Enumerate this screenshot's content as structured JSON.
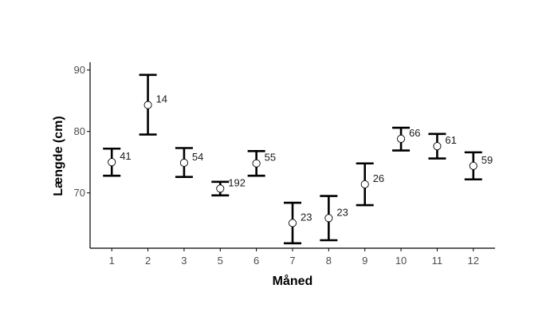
{
  "chart_data": {
    "type": "scatter",
    "title": "",
    "xlabel": "Måned",
    "ylabel": "Længde (cm)",
    "ylim": [
      61,
      91
    ],
    "yticks": [
      70,
      80,
      90
    ],
    "grid": false,
    "legend": "none",
    "points": [
      {
        "x": "1",
        "mean": 75.0,
        "lower": 72.8,
        "upper": 77.2,
        "n": "41"
      },
      {
        "x": "2",
        "mean": 84.3,
        "lower": 79.5,
        "upper": 89.2,
        "n": "14"
      },
      {
        "x": "3",
        "mean": 74.9,
        "lower": 72.6,
        "upper": 77.3,
        "n": "54"
      },
      {
        "x": "5",
        "mean": 70.7,
        "lower": 69.6,
        "upper": 71.8,
        "n": "192"
      },
      {
        "x": "6",
        "mean": 74.8,
        "lower": 72.8,
        "upper": 76.8,
        "n": "55"
      },
      {
        "x": "7",
        "mean": 65.1,
        "lower": 61.8,
        "upper": 68.4,
        "n": "23"
      },
      {
        "x": "8",
        "mean": 65.9,
        "lower": 62.3,
        "upper": 69.5,
        "n": "23"
      },
      {
        "x": "9",
        "mean": 71.4,
        "lower": 68.0,
        "upper": 74.8,
        "n": "26"
      },
      {
        "x": "10",
        "mean": 78.8,
        "lower": 76.9,
        "upper": 80.6,
        "n": "66"
      },
      {
        "x": "11",
        "mean": 77.6,
        "lower": 75.6,
        "upper": 79.6,
        "n": "61"
      },
      {
        "x": "12",
        "mean": 74.4,
        "lower": 72.2,
        "upper": 76.6,
        "n": "59"
      }
    ],
    "colors": {
      "errorbar": "#000000",
      "point_fill": "#ffffff",
      "point_stroke": "#000000",
      "axis": "#000000",
      "tick_text": "#4d4d4d"
    }
  }
}
